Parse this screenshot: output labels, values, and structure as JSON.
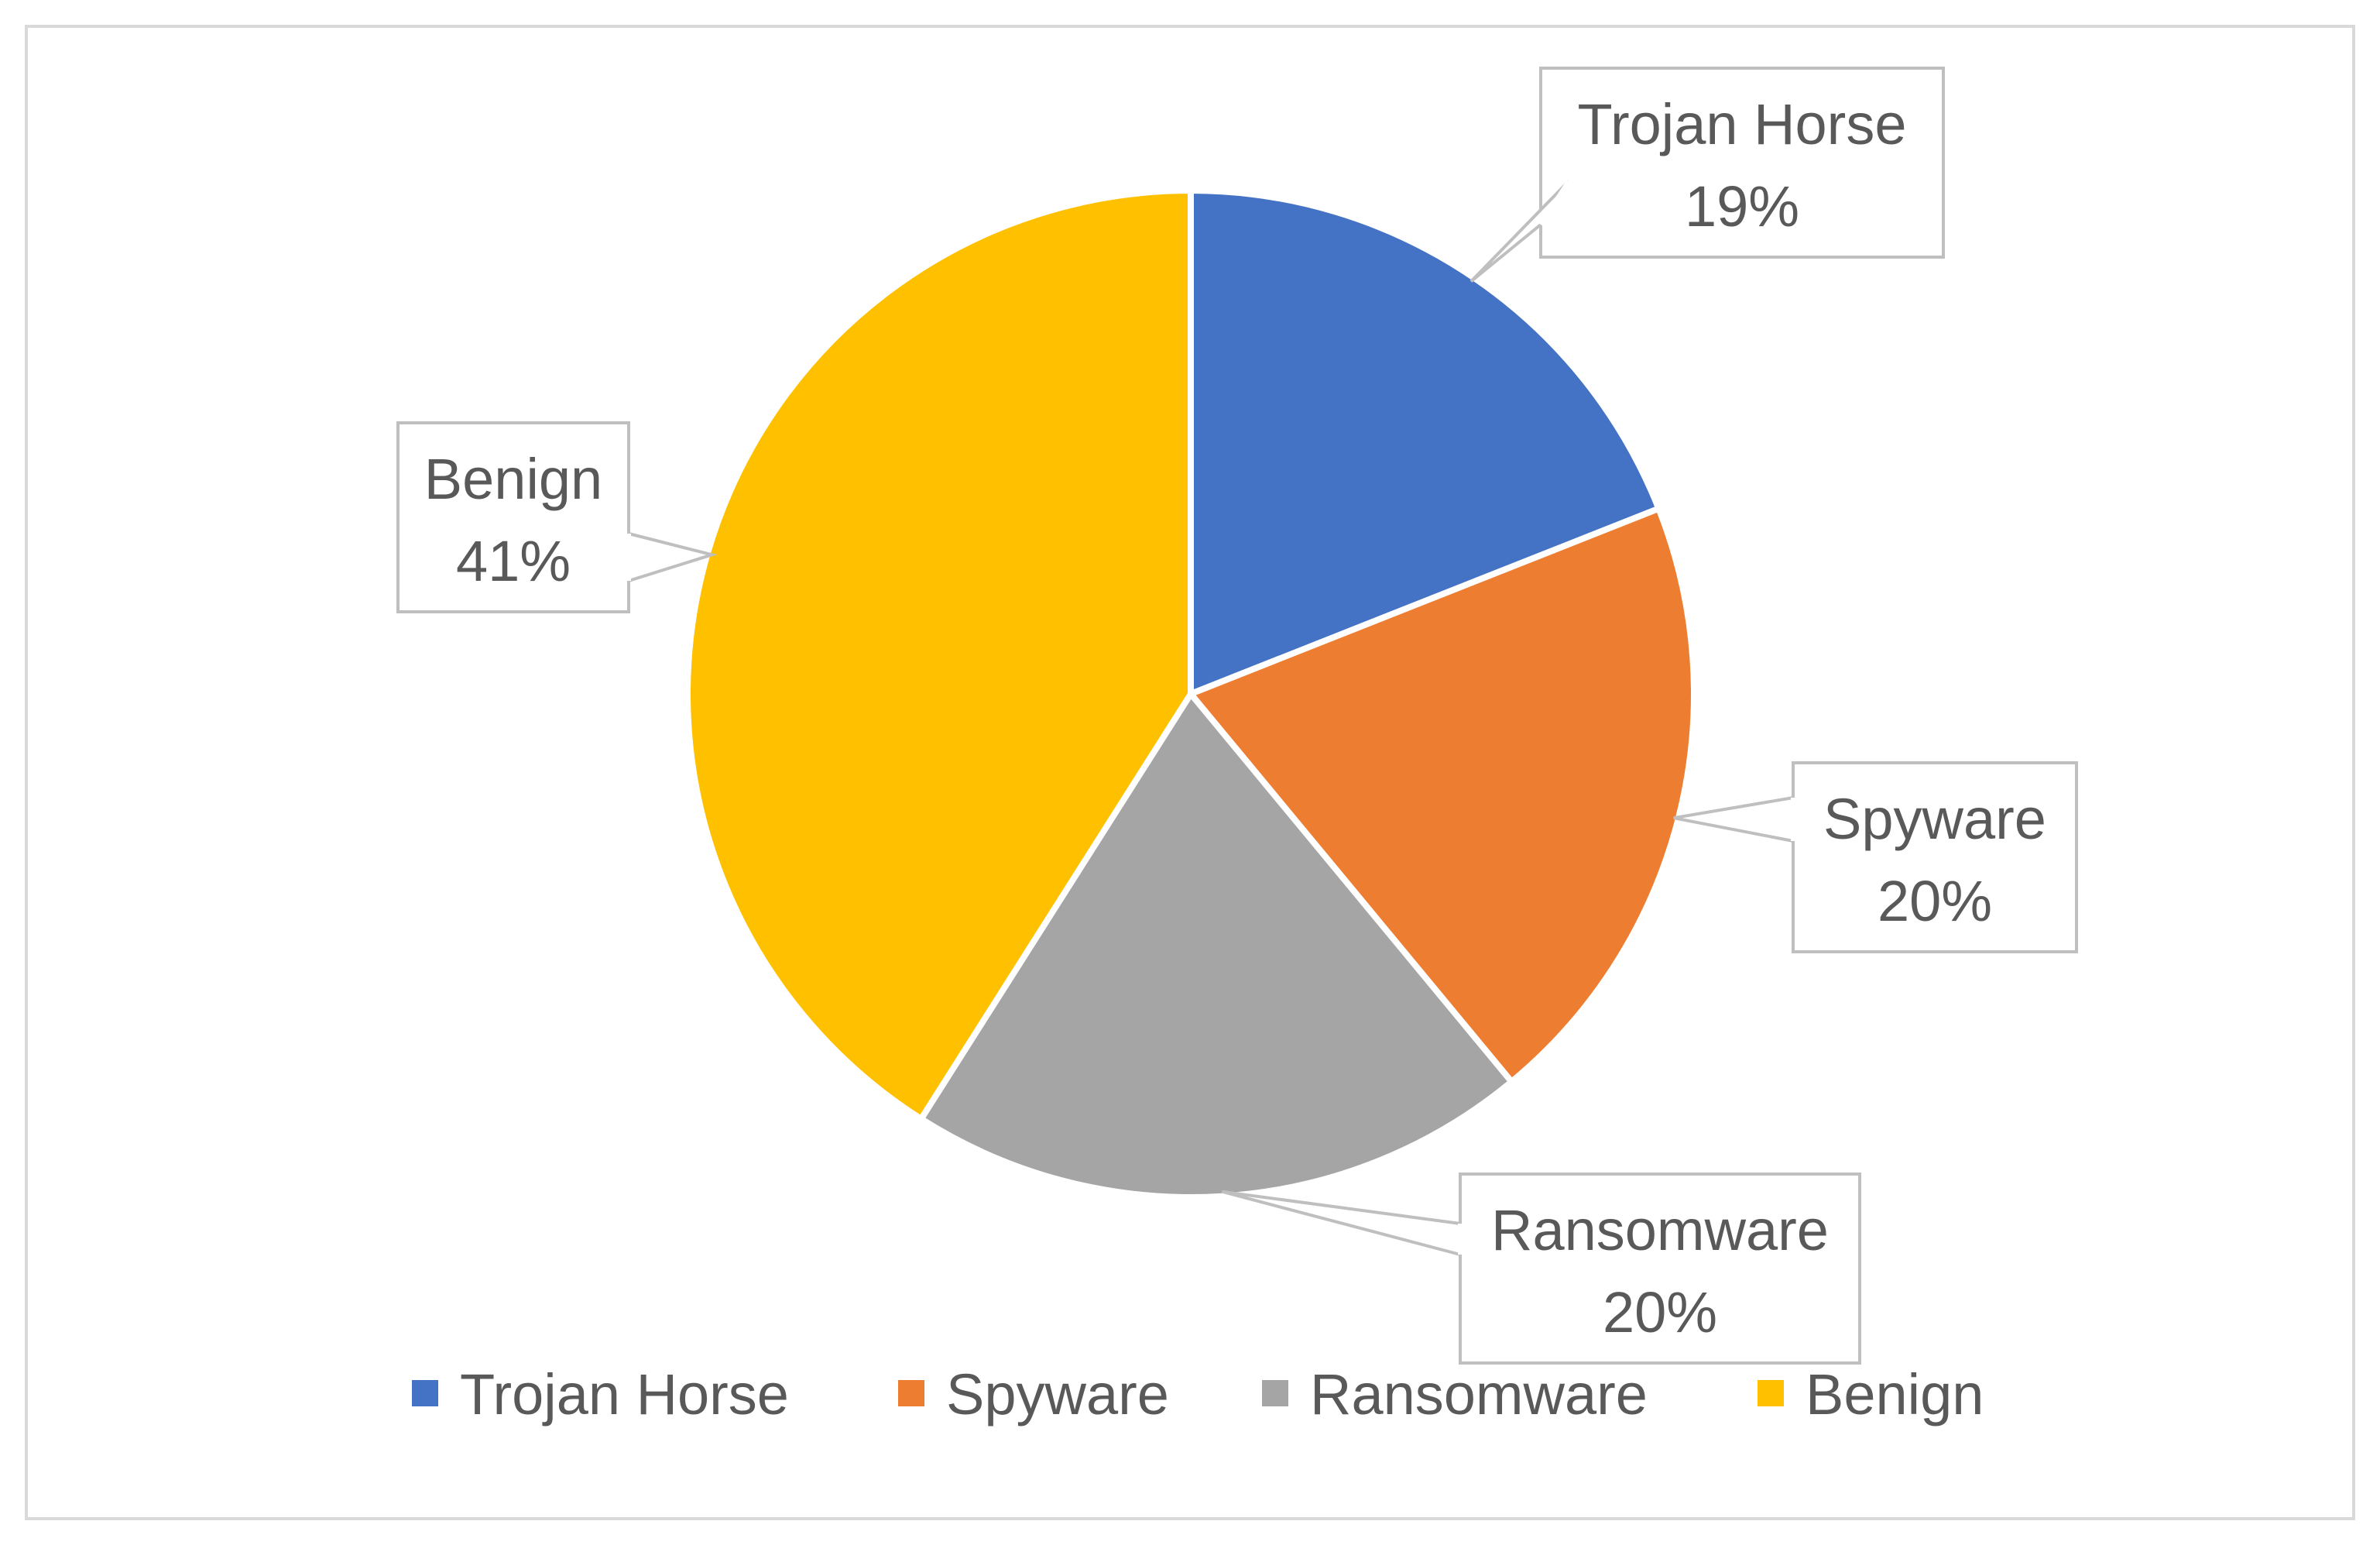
{
  "chart_data": {
    "type": "pie",
    "categories": [
      "Trojan Horse",
      "Spyware",
      "Ransomware",
      "Benign"
    ],
    "values": [
      19,
      20,
      20,
      41
    ],
    "value_labels": [
      "19%",
      "20%",
      "20%",
      "41%"
    ],
    "unit": "%",
    "colors": [
      "#4472C4",
      "#ED7D31",
      "#A5A5A5",
      "#FFC000"
    ],
    "start_angle_deg": 0,
    "direction": "clockwise",
    "data_labels": "callout boxes with category name and percent",
    "legend": {
      "position": "bottom",
      "entries": [
        "Trojan Horse",
        "Spyware",
        "Ransomware",
        "Benign"
      ]
    }
  }
}
